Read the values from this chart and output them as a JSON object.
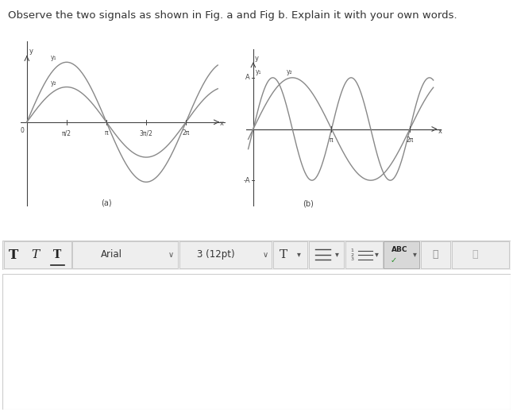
{
  "title_text": "Observe the two signals as shown in Fig. a and Fig b. Explain it with your own words.",
  "title_color": "#333333",
  "title_fontsize": 9.5,
  "fig_label_a": "(a)",
  "fig_label_b": "(b)",
  "fig_a": {
    "x_ticks_vals": [
      1.5707963,
      3.14159265,
      4.71238898,
      6.2831853
    ],
    "x_ticks_labels": [
      "π/2",
      "π",
      "3π/2",
      "2π"
    ],
    "y1_label": "y₁",
    "y2_label": "y₂",
    "y_label": "y",
    "x_label": "x",
    "zero_label": "0",
    "amp1": 1.45,
    "amp2": 0.85
  },
  "fig_b": {
    "y_label": "y",
    "x_label": "x",
    "A_label": "A",
    "neg_A_label": "-A",
    "y1_label": "y₁",
    "y2_label": "y₂",
    "x_ticks_vals": [
      3.14159265,
      6.2831853
    ],
    "x_ticks_labels": [
      "π",
      "2π"
    ],
    "amp": 1.0,
    "freq1": 1,
    "freq2": 2
  },
  "background_color": "#ffffff",
  "line_color": "#888888",
  "toolbar_bg": "#eeeeee",
  "toolbar_border": "#cccccc",
  "text_area_bg": "#ffffff"
}
